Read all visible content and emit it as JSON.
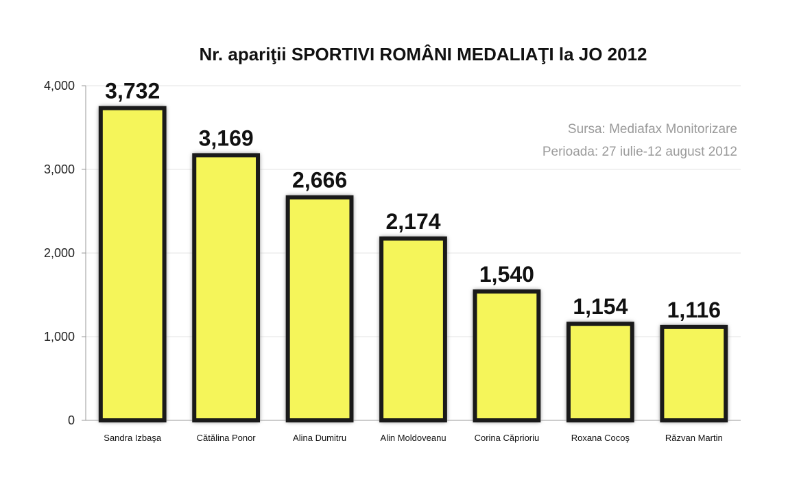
{
  "chart_data": {
    "type": "bar",
    "title": "Nr. apariţii SPORTIVI ROMÂNI MEDALIAŢI la JO 2012",
    "categories": [
      "Sandra Izbaşa",
      "Cătălina Ponor",
      "Alina Dumitru",
      "Alin Moldoveanu",
      "Corina Căprioriu",
      "Roxana Cocoş",
      "Răzvan Martin"
    ],
    "values": [
      3732,
      3169,
      2666,
      2174,
      1540,
      1154,
      1116
    ],
    "value_labels": [
      "3,732",
      "3,169",
      "2,666",
      "2,174",
      "1,540",
      "1,154",
      "1,116"
    ],
    "yticks": [
      0,
      1000,
      2000,
      3000,
      4000
    ],
    "ytick_labels": [
      "0",
      "1,000",
      "2,000",
      "3,000",
      "4,000"
    ],
    "ylim": [
      0,
      4000
    ],
    "xlabel": "",
    "ylabel": "",
    "grid": true,
    "colors": {
      "bar_fill": "#f5f55a",
      "bar_outline": "#1a1a1a",
      "glow": "#9a9a9a"
    }
  },
  "annotation": {
    "line1": "Sursa: Mediafax Monitorizare",
    "line2": "Perioada: 27 iulie-12 august 2012"
  }
}
